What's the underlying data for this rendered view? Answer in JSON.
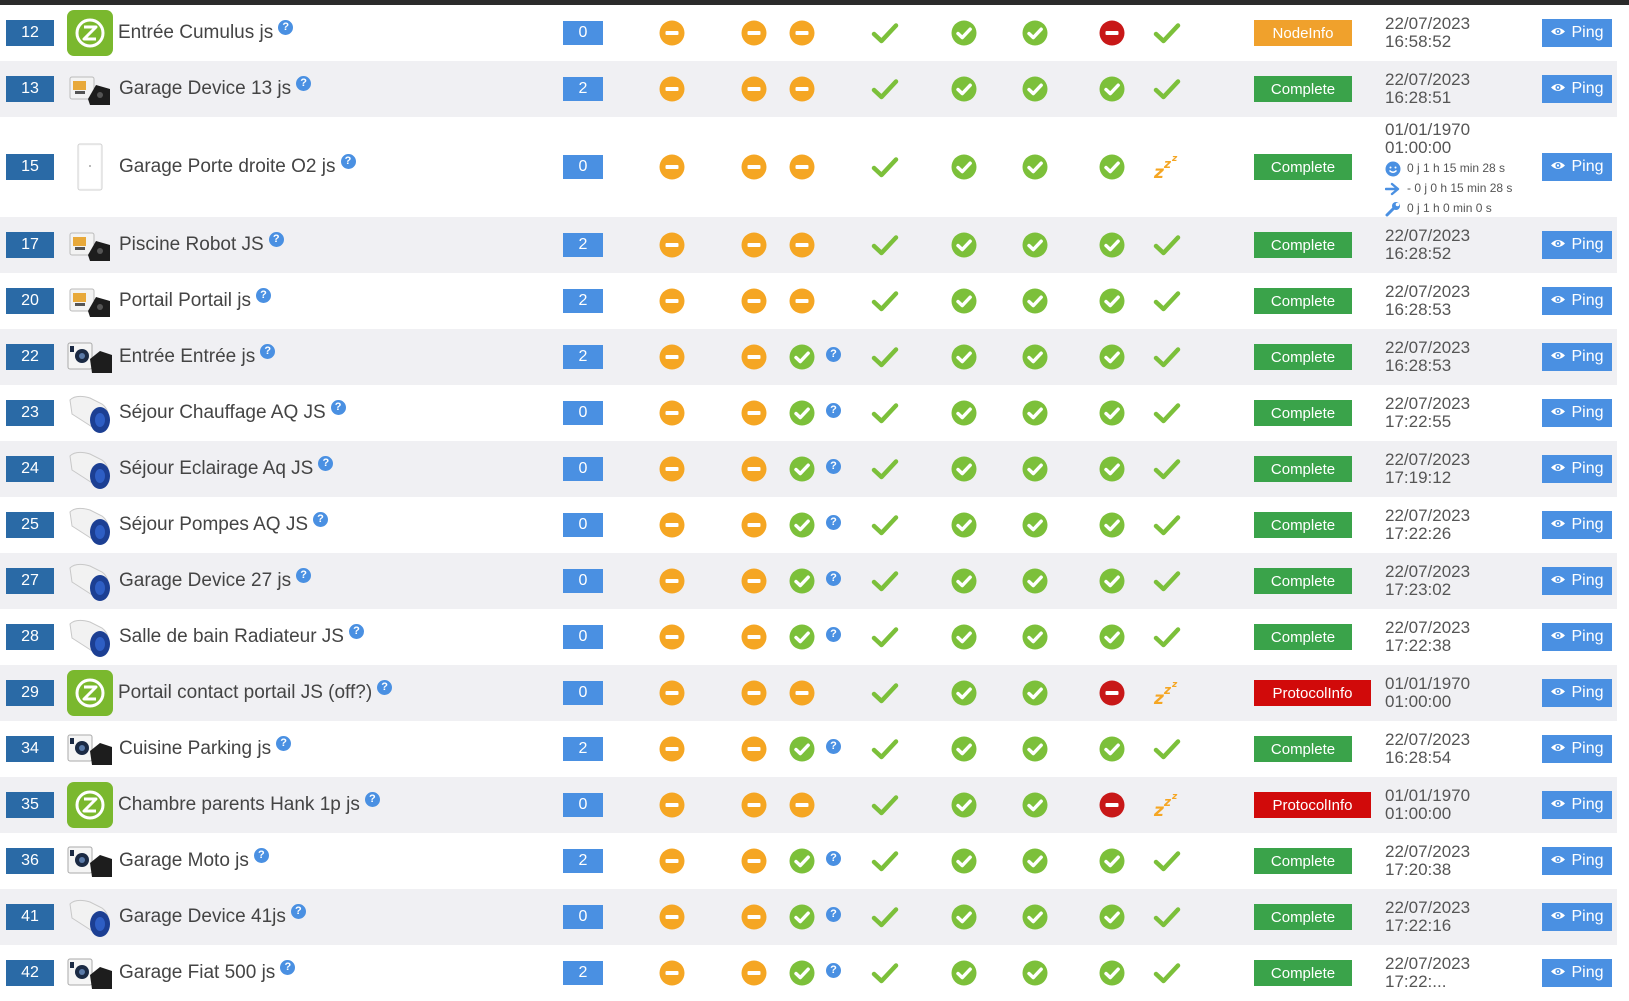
{
  "ping_label": "Ping",
  "rows": [
    {
      "id": "12",
      "name": "Entrée Cumulus js",
      "icon": "zwave",
      "count": "0",
      "s3": "minus",
      "q3": false,
      "g3": "red",
      "last": "check",
      "badge": "NodeInfo",
      "badge_color": "#f0a12c",
      "date": "22/07/2023",
      "time": "16:58:52"
    },
    {
      "id": "13",
      "name": "Garage Device 13 js",
      "icon": "module",
      "count": "2",
      "s3": "minus",
      "q3": false,
      "g3": "green",
      "last": "check",
      "badge": "Complete",
      "badge_color": "#3aa34a",
      "date": "22/07/2023",
      "time": "16:28:51"
    },
    {
      "id": "15",
      "name": "Garage Porte droite O2 js",
      "icon": "door",
      "count": "0",
      "s3": "minus",
      "q3": false,
      "g3": "green",
      "last": "sleep",
      "badge": "Complete",
      "badge_color": "#3aa34a",
      "date": "01/01/1970",
      "time": "01:00:00",
      "sub": [
        "0 j 1 h 15 min 28 s",
        "- 0 j 0 h 15 min 28 s",
        "0 j 1 h 0 min 0 s"
      ]
    },
    {
      "id": "17",
      "name": "Piscine Robot JS",
      "icon": "module",
      "count": "2",
      "s3": "minus",
      "q3": false,
      "g3": "green",
      "last": "check",
      "badge": "Complete",
      "badge_color": "#3aa34a",
      "date": "22/07/2023",
      "time": "16:28:52"
    },
    {
      "id": "20",
      "name": "Portail Portail js",
      "icon": "module",
      "count": "2",
      "s3": "minus",
      "q3": false,
      "g3": "green",
      "last": "check",
      "badge": "Complete",
      "badge_color": "#3aa34a",
      "date": "22/07/2023",
      "time": "16:28:53"
    },
    {
      "id": "22",
      "name": "Entrée Entrée js",
      "icon": "camera",
      "count": "2",
      "s3": "check",
      "q3": true,
      "g3": "green",
      "last": "check",
      "badge": "Complete",
      "badge_color": "#3aa34a",
      "date": "22/07/2023",
      "time": "16:28:53"
    },
    {
      "id": "23",
      "name": "Séjour Chauffage AQ JS",
      "icon": "plug",
      "count": "0",
      "s3": "check",
      "q3": true,
      "g3": "green",
      "last": "check",
      "badge": "Complete",
      "badge_color": "#3aa34a",
      "date": "22/07/2023",
      "time": "17:22:55"
    },
    {
      "id": "24",
      "name": "Séjour Eclairage Aq JS",
      "icon": "plug",
      "count": "0",
      "s3": "check",
      "q3": true,
      "g3": "green",
      "last": "check",
      "badge": "Complete",
      "badge_color": "#3aa34a",
      "date": "22/07/2023",
      "time": "17:19:12"
    },
    {
      "id": "25",
      "name": "Séjour Pompes AQ JS",
      "icon": "plug",
      "count": "0",
      "s3": "check",
      "q3": true,
      "g3": "green",
      "last": "check",
      "badge": "Complete",
      "badge_color": "#3aa34a",
      "date": "22/07/2023",
      "time": "17:22:26"
    },
    {
      "id": "27",
      "name": "Garage Device 27 js",
      "icon": "plug",
      "count": "0",
      "s3": "check",
      "q3": true,
      "g3": "green",
      "last": "check",
      "badge": "Complete",
      "badge_color": "#3aa34a",
      "date": "22/07/2023",
      "time": "17:23:02"
    },
    {
      "id": "28",
      "name": "Salle de bain Radiateur JS",
      "icon": "plug",
      "count": "0",
      "s3": "check",
      "q3": true,
      "g3": "green",
      "last": "check",
      "badge": "Complete",
      "badge_color": "#3aa34a",
      "date": "22/07/2023",
      "time": "17:22:38"
    },
    {
      "id": "29",
      "name": "Portail contact portail JS (off?)",
      "icon": "zwave",
      "count": "0",
      "s3": "minus",
      "q3": false,
      "g3": "red",
      "last": "sleep",
      "badge": "ProtocolInfo",
      "badge_color": "#d10a0a",
      "date": "01/01/1970",
      "time": "01:00:00"
    },
    {
      "id": "34",
      "name": "Cuisine Parking js",
      "icon": "camera",
      "count": "2",
      "s3": "check",
      "q3": true,
      "g3": "green",
      "last": "check",
      "badge": "Complete",
      "badge_color": "#3aa34a",
      "date": "22/07/2023",
      "time": "16:28:54"
    },
    {
      "id": "35",
      "name": "Chambre parents Hank 1p js",
      "icon": "zwave",
      "count": "0",
      "s3": "minus",
      "q3": false,
      "g3": "red",
      "last": "sleep",
      "badge": "ProtocolInfo",
      "badge_color": "#d10a0a",
      "date": "01/01/1970",
      "time": "01:00:00"
    },
    {
      "id": "36",
      "name": "Garage Moto js",
      "icon": "camera",
      "count": "2",
      "s3": "check",
      "q3": true,
      "g3": "green",
      "last": "check",
      "badge": "Complete",
      "badge_color": "#3aa34a",
      "date": "22/07/2023",
      "time": "17:20:38"
    },
    {
      "id": "41",
      "name": "Garage Device 41js",
      "icon": "plug",
      "count": "0",
      "s3": "check",
      "q3": true,
      "g3": "green",
      "last": "check",
      "badge": "Complete",
      "badge_color": "#3aa34a",
      "date": "22/07/2023",
      "time": "17:22:16"
    },
    {
      "id": "42",
      "name": "Garage Fiat 500 js",
      "icon": "camera",
      "count": "2",
      "s3": "check",
      "q3": true,
      "g3": "green",
      "last": "check",
      "badge": "Complete",
      "badge_color": "#3aa34a",
      "date": "22/07/2023",
      "time": "17:22:..."
    }
  ]
}
